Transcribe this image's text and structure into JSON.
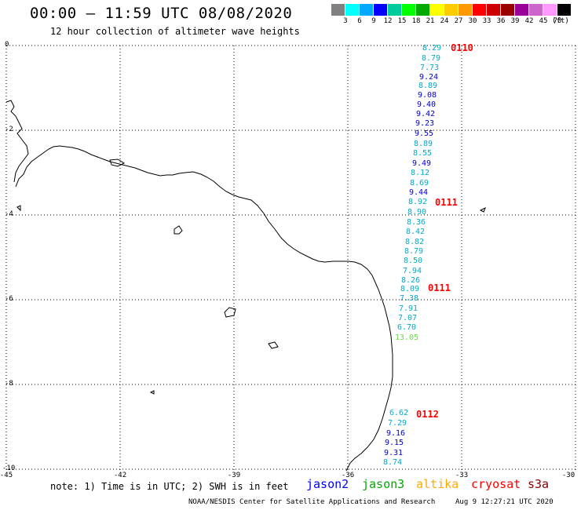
{
  "title": "00:00 – 11:59 UTC 08/08/2020",
  "subtitle": "12 hour collection of altimeter wave heights",
  "legend": {
    "unit": "(ft)",
    "swatches": [
      {
        "color": "#808080",
        "label": "3"
      },
      {
        "color": "#00ffff",
        "label": "6"
      },
      {
        "color": "#00aaff",
        "label": "9"
      },
      {
        "color": "#0000ff",
        "label": "12"
      },
      {
        "color": "#00cc99",
        "label": "15"
      },
      {
        "color": "#00ff00",
        "label": "18"
      },
      {
        "color": "#00aa00",
        "label": "21"
      },
      {
        "color": "#ffff00",
        "label": "24"
      },
      {
        "color": "#ffcc00",
        "label": "27"
      },
      {
        "color": "#ff9900",
        "label": "30"
      },
      {
        "color": "#ff0000",
        "label": "33"
      },
      {
        "color": "#cc0000",
        "label": "36"
      },
      {
        "color": "#990000",
        "label": "39"
      },
      {
        "color": "#990099",
        "label": "42"
      },
      {
        "color": "#cc66cc",
        "label": "45"
      },
      {
        "color": "#ff99ff",
        "label": "70"
      },
      {
        "color": "#000000",
        "label": ""
      }
    ]
  },
  "axes": {
    "lat_ticks": [
      "0",
      "-2",
      "-4",
      "-6",
      "-8",
      "-10"
    ],
    "lon_ticks": [
      "-45",
      "-42",
      "-39",
      "-36",
      "-33",
      "-30"
    ]
  },
  "wave_heights": [
    {
      "v": "8.29",
      "color": "#00aacc"
    },
    {
      "v": "8.79",
      "color": "#00aacc"
    },
    {
      "v": "7.73",
      "color": "#00aacc"
    },
    {
      "v": "9.24",
      "color": "#0000cc"
    },
    {
      "v": "8.89",
      "color": "#00aacc"
    },
    {
      "v": "9.08",
      "color": "#0000cc"
    },
    {
      "v": "9.40",
      "color": "#0000cc"
    },
    {
      "v": "9.42",
      "color": "#0000cc"
    },
    {
      "v": "9.23",
      "color": "#0000cc"
    },
    {
      "v": "9.55",
      "color": "#0000cc"
    },
    {
      "v": "8.89",
      "color": "#00aacc"
    },
    {
      "v": "8.55",
      "color": "#00aacc"
    },
    {
      "v": "9.49",
      "color": "#0000cc"
    },
    {
      "v": "8.12",
      "color": "#00aacc"
    },
    {
      "v": "8.69",
      "color": "#00aacc"
    },
    {
      "v": "9.44",
      "color": "#0000cc"
    },
    {
      "v": "8.92",
      "color": "#00aacc"
    },
    {
      "v": "8.90",
      "color": "#00aacc"
    },
    {
      "v": "8.36",
      "color": "#00aacc"
    },
    {
      "v": "8.42",
      "color": "#00aacc"
    },
    {
      "v": "8.82",
      "color": "#00aacc"
    },
    {
      "v": "8.79",
      "color": "#00aacc"
    },
    {
      "v": "8.50",
      "color": "#00aacc"
    },
    {
      "v": "7.94",
      "color": "#00aacc"
    },
    {
      "v": "8.26",
      "color": "#00aacc"
    },
    {
      "v": "8.09",
      "color": "#00aacc"
    },
    {
      "v": "7.38",
      "color": "#00aacc"
    },
    {
      "v": "7.91",
      "color": "#00aacc"
    },
    {
      "v": "7.07",
      "color": "#00aacc"
    },
    {
      "v": "6.70",
      "color": "#00aacc"
    },
    {
      "v": "13.05",
      "color": "#66dd44"
    },
    {
      "v": "6.62",
      "color": "#00aacc"
    },
    {
      "v": "7.29",
      "color": "#00aacc"
    },
    {
      "v": "9.16",
      "color": "#0000cc"
    },
    {
      "v": "9.15",
      "color": "#0000cc"
    },
    {
      "v": "9.31",
      "color": "#0000cc"
    },
    {
      "v": "8.74",
      "color": "#00aacc"
    }
  ],
  "pass_times": [
    "0110",
    "0111",
    "0111",
    "0112"
  ],
  "note": "note: 1) Time is in UTC; 2) SWH is in feet",
  "satellites": [
    {
      "name": "jason2",
      "color": "#0000ff"
    },
    {
      "name": "jason3",
      "color": "#00aa00"
    },
    {
      "name": "altika",
      "color": "#ffaa00"
    },
    {
      "name": "cryosat",
      "color": "#ff0000"
    },
    {
      "name": "s3a",
      "color": "#880000"
    }
  ],
  "credit": "NOAA/NESDIS Center for Satellite Applications and Research",
  "timestamp": "Aug  9 12:27:21 UTC 2020"
}
